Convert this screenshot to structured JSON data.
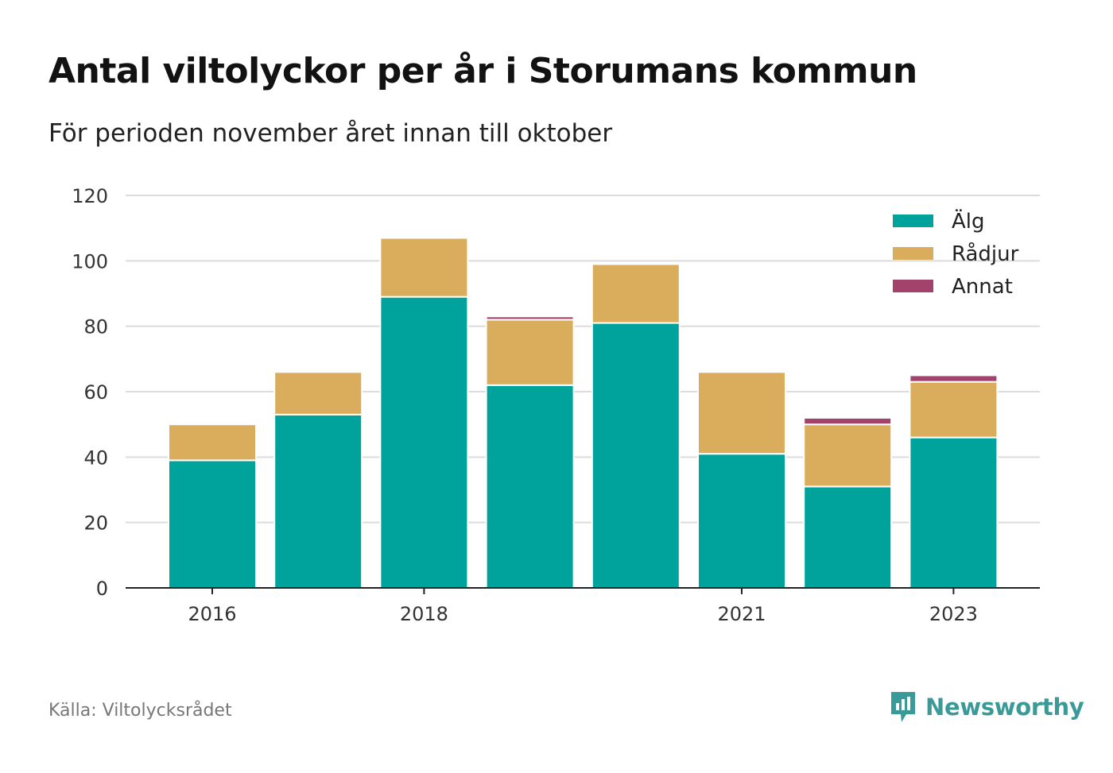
{
  "title": "Antal viltolyckor per år i Storumans kommun",
  "subtitle": "För perioden november året innan till oktober",
  "source": "Källa: Viltolycksrådet",
  "brand": {
    "name": "Newsworthy",
    "icon": "newsworthy-logo-icon",
    "color": "#3a9a97"
  },
  "chart_data": {
    "type": "bar",
    "stacked": true,
    "categories": [
      "2016",
      "2017",
      "2018",
      "2019",
      "2020",
      "2021",
      "2022",
      "2023"
    ],
    "x_tick_labels": [
      "2016",
      "2018",
      "2021",
      "2023"
    ],
    "series": [
      {
        "name": "Älg",
        "color": "#00a39b",
        "values": [
          39,
          53,
          89,
          62,
          81,
          41,
          31,
          46
        ]
      },
      {
        "name": "Rådjur",
        "color": "#d9ad5b",
        "values": [
          11,
          13,
          18,
          20,
          18,
          25,
          19,
          17
        ]
      },
      {
        "name": "Annat",
        "color": "#a3426a",
        "values": [
          0,
          0,
          0,
          1,
          0,
          0,
          2,
          2
        ]
      }
    ],
    "ylim": [
      0,
      120
    ],
    "y_ticks": [
      0,
      20,
      40,
      60,
      80,
      100,
      120
    ],
    "xlabel": "",
    "ylabel": "",
    "grid": true,
    "legend": "top-right"
  }
}
